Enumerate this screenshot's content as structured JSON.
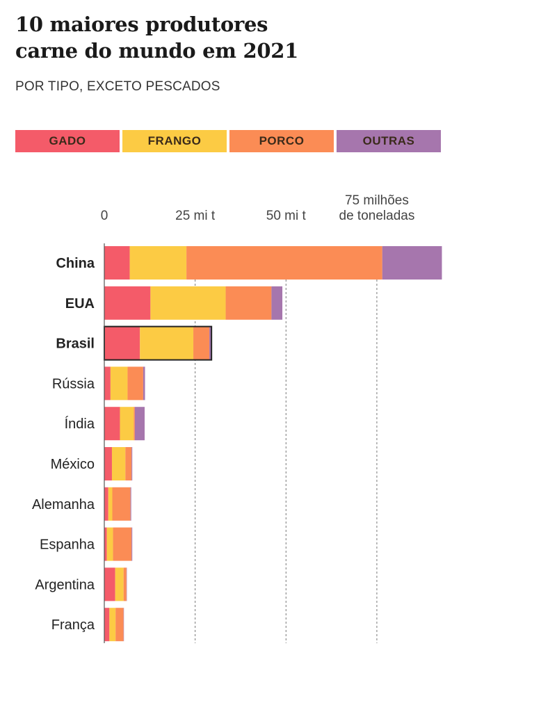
{
  "header": {
    "title_line1": "10 maiores produtores",
    "title_line2": "carne do mundo em 2021",
    "subtitle": "POR TIPO, EXCETO PESCADOS"
  },
  "legend": [
    {
      "label": "GADO",
      "color": "#f45b69"
    },
    {
      "label": "FRANGO",
      "color": "#fccb44"
    },
    {
      "label": "PORCO",
      "color": "#fb8c55"
    },
    {
      "label": "OUTRAS",
      "color": "#a676ad"
    }
  ],
  "chart_data": {
    "type": "bar",
    "orientation": "horizontal",
    "stacked": true,
    "categories": [
      "China",
      "EUA",
      "Brasil",
      "Rússia",
      "Índia",
      "México",
      "Alemanha",
      "Espanha",
      "Argentina",
      "França"
    ],
    "highlighted": [
      "China",
      "EUA",
      "Brasil"
    ],
    "outlined": [
      "Brasil"
    ],
    "series": [
      {
        "name": "GADO",
        "color": "#f45b69",
        "values": [
          7.0,
          12.7,
          9.8,
          1.7,
          4.3,
          2.1,
          1.1,
          0.7,
          3.0,
          1.4
        ]
      },
      {
        "name": "FRANGO",
        "color": "#fccb44",
        "values": [
          15.6,
          20.7,
          14.7,
          4.7,
          3.8,
          3.7,
          1.1,
          1.7,
          2.3,
          1.7
        ]
      },
      {
        "name": "PORCO",
        "color": "#fb8c55",
        "values": [
          53.9,
          12.6,
          4.4,
          4.3,
          0.3,
          1.7,
          5.0,
          5.1,
          0.8,
          2.2
        ]
      },
      {
        "name": "OUTRAS",
        "color": "#a676ad",
        "values": [
          16.4,
          3.0,
          0.6,
          0.5,
          2.7,
          0.2,
          0.2,
          0.2,
          0.1,
          0.1
        ]
      }
    ],
    "xlim": [
      0,
      93
    ],
    "xticks": [
      {
        "value": 0,
        "lines": [
          "0"
        ]
      },
      {
        "value": 25,
        "lines": [
          "25 mi t"
        ]
      },
      {
        "value": 50,
        "lines": [
          "50 mi t"
        ]
      },
      {
        "value": 75,
        "lines": [
          "75 milhões",
          "de toneladas"
        ]
      }
    ],
    "gridlines": "dashed vertical at 25, 50, 75",
    "legend_position": "top"
  }
}
